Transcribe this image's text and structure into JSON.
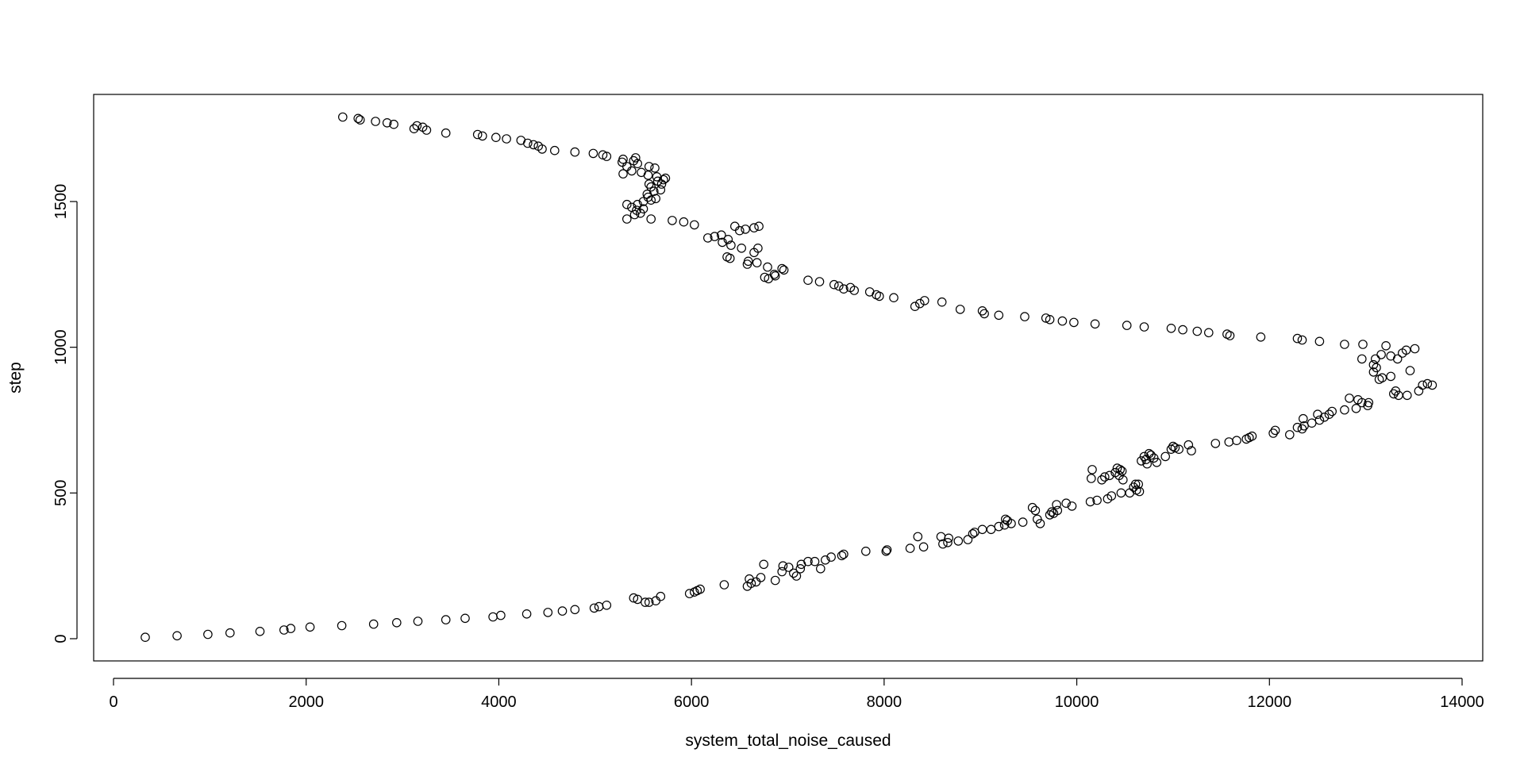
{
  "chart_data": {
    "type": "scatter",
    "title": "",
    "xlabel": "system_total_noise_caused",
    "ylabel": "step",
    "xlim": [
      -500,
      14100
    ],
    "ylim": [
      -70,
      1870
    ],
    "x_ticks": [
      0,
      2000,
      4000,
      6000,
      8000,
      10000,
      12000,
      14000
    ],
    "y_ticks": [
      0,
      500,
      1000,
      1500
    ],
    "x_tick_labels": [
      "0",
      "2000",
      "4000",
      "6000",
      "8000",
      "10000",
      "12000",
      "14000"
    ],
    "y_tick_labels": [
      "0",
      "500",
      "1000",
      "1500"
    ],
    "grid": false,
    "legend": "none",
    "marker": "open-circle",
    "colors": {
      "points": "#000000",
      "axes": "#000000",
      "background": "#ffffff"
    },
    "points": [
      [
        330,
        5
      ],
      [
        660,
        10
      ],
      [
        980,
        15
      ],
      [
        1210,
        20
      ],
      [
        1520,
        25
      ],
      [
        1770,
        30
      ],
      [
        1840,
        35
      ],
      [
        2040,
        40
      ],
      [
        2370,
        45
      ],
      [
        2700,
        50
      ],
      [
        2940,
        55
      ],
      [
        3160,
        60
      ],
      [
        3450,
        65
      ],
      [
        3650,
        70
      ],
      [
        3940,
        75
      ],
      [
        4020,
        80
      ],
      [
        4290,
        85
      ],
      [
        4510,
        90
      ],
      [
        4660,
        95
      ],
      [
        4790,
        100
      ],
      [
        4990,
        105
      ],
      [
        5040,
        110
      ],
      [
        5120,
        115
      ],
      [
        5400,
        140
      ],
      [
        5440,
        135
      ],
      [
        5520,
        125
      ],
      [
        5560,
        125
      ],
      [
        5630,
        130
      ],
      [
        5680,
        145
      ],
      [
        5980,
        155
      ],
      [
        6030,
        160
      ],
      [
        6060,
        165
      ],
      [
        6090,
        170
      ],
      [
        6340,
        185
      ],
      [
        6580,
        180
      ],
      [
        6620,
        190
      ],
      [
        6670,
        195
      ],
      [
        6720,
        210
      ],
      [
        6600,
        205
      ],
      [
        6750,
        255
      ],
      [
        6870,
        200
      ],
      [
        6940,
        230
      ],
      [
        6950,
        250
      ],
      [
        7010,
        245
      ],
      [
        7060,
        225
      ],
      [
        7090,
        215
      ],
      [
        7130,
        240
      ],
      [
        7140,
        255
      ],
      [
        7210,
        265
      ],
      [
        7280,
        265
      ],
      [
        7340,
        240
      ],
      [
        7390,
        270
      ],
      [
        7450,
        280
      ],
      [
        7560,
        285
      ],
      [
        7580,
        290
      ],
      [
        7810,
        300
      ],
      [
        8020,
        300
      ],
      [
        8030,
        305
      ],
      [
        8270,
        310
      ],
      [
        8350,
        350
      ],
      [
        8410,
        315
      ],
      [
        8590,
        350
      ],
      [
        8610,
        325
      ],
      [
        8660,
        330
      ],
      [
        8670,
        345
      ],
      [
        8770,
        335
      ],
      [
        8870,
        340
      ],
      [
        8920,
        360
      ],
      [
        8940,
        365
      ],
      [
        9020,
        375
      ],
      [
        9110,
        375
      ],
      [
        9190,
        385
      ],
      [
        9250,
        390
      ],
      [
        9260,
        410
      ],
      [
        9280,
        405
      ],
      [
        9320,
        395
      ],
      [
        9440,
        400
      ],
      [
        9540,
        450
      ],
      [
        9570,
        440
      ],
      [
        9590,
        410
      ],
      [
        9620,
        395
      ],
      [
        9720,
        425
      ],
      [
        9740,
        435
      ],
      [
        9760,
        430
      ],
      [
        9790,
        460
      ],
      [
        9800,
        440
      ],
      [
        9890,
        465
      ],
      [
        9950,
        455
      ],
      [
        10140,
        470
      ],
      [
        10150,
        550
      ],
      [
        10160,
        580
      ],
      [
        10210,
        475
      ],
      [
        10260,
        545
      ],
      [
        10290,
        555
      ],
      [
        10320,
        480
      ],
      [
        10340,
        560
      ],
      [
        10360,
        490
      ],
      [
        10400,
        570
      ],
      [
        10420,
        585
      ],
      [
        10440,
        560
      ],
      [
        10450,
        580
      ],
      [
        10460,
        500
      ],
      [
        10470,
        575
      ],
      [
        10480,
        545
      ],
      [
        10550,
        500
      ],
      [
        10590,
        520
      ],
      [
        10610,
        530
      ],
      [
        10620,
        510
      ],
      [
        10640,
        530
      ],
      [
        10650,
        505
      ],
      [
        10670,
        610
      ],
      [
        10700,
        625
      ],
      [
        10720,
        615
      ],
      [
        10730,
        600
      ],
      [
        10750,
        635
      ],
      [
        10770,
        630
      ],
      [
        10800,
        620
      ],
      [
        10830,
        605
      ],
      [
        10920,
        625
      ],
      [
        10980,
        650
      ],
      [
        11000,
        660
      ],
      [
        11020,
        655
      ],
      [
        11060,
        650
      ],
      [
        11160,
        665
      ],
      [
        11190,
        645
      ],
      [
        11440,
        670
      ],
      [
        11580,
        675
      ],
      [
        11660,
        680
      ],
      [
        11760,
        685
      ],
      [
        11790,
        690
      ],
      [
        11820,
        695
      ],
      [
        12040,
        705
      ],
      [
        12060,
        715
      ],
      [
        12210,
        700
      ],
      [
        12290,
        725
      ],
      [
        12340,
        720
      ],
      [
        12350,
        755
      ],
      [
        12360,
        730
      ],
      [
        12440,
        740
      ],
      [
        12500,
        770
      ],
      [
        12520,
        750
      ],
      [
        12570,
        760
      ],
      [
        12620,
        770
      ],
      [
        12650,
        780
      ],
      [
        12780,
        785
      ],
      [
        12830,
        825
      ],
      [
        12900,
        790
      ],
      [
        12920,
        820
      ],
      [
        12960,
        810
      ],
      [
        13020,
        800
      ],
      [
        13030,
        810
      ],
      [
        13080,
        915
      ],
      [
        13110,
        930
      ],
      [
        13140,
        890
      ],
      [
        13170,
        895
      ],
      [
        13260,
        900
      ],
      [
        13290,
        840
      ],
      [
        13310,
        850
      ],
      [
        13340,
        835
      ],
      [
        13430,
        835
      ],
      [
        13460,
        920
      ],
      [
        13550,
        850
      ],
      [
        13590,
        870
      ],
      [
        13640,
        875
      ],
      [
        13690,
        870
      ],
      [
        13330,
        960
      ],
      [
        13380,
        980
      ],
      [
        13420,
        990
      ],
      [
        13510,
        995
      ],
      [
        13260,
        970
      ],
      [
        13210,
        1005
      ],
      [
        13160,
        975
      ],
      [
        13100,
        960
      ],
      [
        13080,
        940
      ],
      [
        12970,
        1010
      ],
      [
        12960,
        960
      ],
      [
        12780,
        1010
      ],
      [
        12520,
        1020
      ],
      [
        12340,
        1025
      ],
      [
        12290,
        1030
      ],
      [
        11910,
        1035
      ],
      [
        11590,
        1040
      ],
      [
        11560,
        1045
      ],
      [
        11370,
        1050
      ],
      [
        11250,
        1055
      ],
      [
        11100,
        1060
      ],
      [
        10980,
        1065
      ],
      [
        10700,
        1070
      ],
      [
        10520,
        1075
      ],
      [
        10190,
        1080
      ],
      [
        9970,
        1085
      ],
      [
        9850,
        1090
      ],
      [
        9720,
        1095
      ],
      [
        9680,
        1100
      ],
      [
        9460,
        1105
      ],
      [
        9190,
        1110
      ],
      [
        9040,
        1115
      ],
      [
        9020,
        1125
      ],
      [
        8790,
        1130
      ],
      [
        8600,
        1155
      ],
      [
        8420,
        1160
      ],
      [
        8370,
        1150
      ],
      [
        8320,
        1140
      ],
      [
        8100,
        1170
      ],
      [
        7950,
        1175
      ],
      [
        7920,
        1180
      ],
      [
        7850,
        1190
      ],
      [
        7690,
        1195
      ],
      [
        7650,
        1205
      ],
      [
        7580,
        1200
      ],
      [
        7530,
        1210
      ],
      [
        7480,
        1215
      ],
      [
        7330,
        1225
      ],
      [
        7210,
        1230
      ],
      [
        6960,
        1265
      ],
      [
        6940,
        1270
      ],
      [
        6860,
        1250
      ],
      [
        6870,
        1245
      ],
      [
        6800,
        1235
      ],
      [
        6760,
        1240
      ],
      [
        6790,
        1275
      ],
      [
        6680,
        1290
      ],
      [
        6590,
        1295
      ],
      [
        6580,
        1285
      ],
      [
        6650,
        1325
      ],
      [
        6690,
        1340
      ],
      [
        6700,
        1415
      ],
      [
        6650,
        1410
      ],
      [
        6560,
        1405
      ],
      [
        6500,
        1400
      ],
      [
        6450,
        1415
      ],
      [
        6520,
        1340
      ],
      [
        6410,
        1350
      ],
      [
        6400,
        1305
      ],
      [
        6370,
        1310
      ],
      [
        6380,
        1370
      ],
      [
        6320,
        1360
      ],
      [
        6310,
        1385
      ],
      [
        6240,
        1380
      ],
      [
        6170,
        1375
      ],
      [
        6030,
        1420
      ],
      [
        5920,
        1430
      ],
      [
        5800,
        1435
      ],
      [
        5580,
        1440
      ],
      [
        5330,
        1440
      ],
      [
        5410,
        1455
      ],
      [
        5470,
        1460
      ],
      [
        5430,
        1470
      ],
      [
        5500,
        1475
      ],
      [
        5380,
        1480
      ],
      [
        5440,
        1490
      ],
      [
        5330,
        1490
      ],
      [
        5500,
        1500
      ],
      [
        5580,
        1505
      ],
      [
        5630,
        1510
      ],
      [
        5550,
        1515
      ],
      [
        5540,
        1525
      ],
      [
        5610,
        1535
      ],
      [
        5680,
        1540
      ],
      [
        5580,
        1550
      ],
      [
        5690,
        1560
      ],
      [
        5560,
        1560
      ],
      [
        5650,
        1570
      ],
      [
        5710,
        1575
      ],
      [
        5730,
        1580
      ],
      [
        5640,
        1585
      ],
      [
        5550,
        1590
      ],
      [
        5290,
        1595
      ],
      [
        5480,
        1600
      ],
      [
        5380,
        1605
      ],
      [
        5330,
        1620
      ],
      [
        5440,
        1630
      ],
      [
        5280,
        1635
      ],
      [
        5400,
        1640
      ],
      [
        5290,
        1645
      ],
      [
        5420,
        1650
      ],
      [
        5560,
        1620
      ],
      [
        5620,
        1615
      ],
      [
        5120,
        1655
      ],
      [
        5080,
        1660
      ],
      [
        4980,
        1665
      ],
      [
        4790,
        1670
      ],
      [
        4580,
        1675
      ],
      [
        4450,
        1680
      ],
      [
        4410,
        1690
      ],
      [
        4360,
        1695
      ],
      [
        4300,
        1700
      ],
      [
        4230,
        1710
      ],
      [
        4080,
        1715
      ],
      [
        3970,
        1720
      ],
      [
        3830,
        1725
      ],
      [
        3780,
        1730
      ],
      [
        3450,
        1735
      ],
      [
        3250,
        1745
      ],
      [
        3120,
        1750
      ],
      [
        3210,
        1755
      ],
      [
        3150,
        1760
      ],
      [
        2910,
        1765
      ],
      [
        2840,
        1770
      ],
      [
        2720,
        1775
      ],
      [
        2560,
        1780
      ],
      [
        2540,
        1785
      ],
      [
        2380,
        1790
      ]
    ]
  }
}
